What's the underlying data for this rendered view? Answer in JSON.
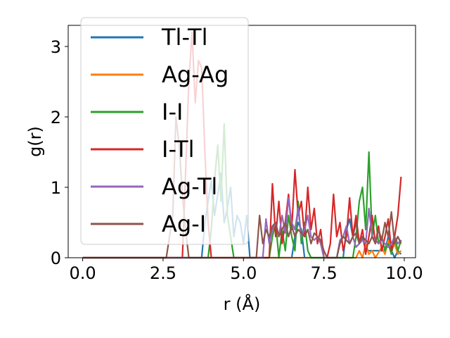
{
  "chart_data": {
    "type": "line",
    "xlabel": "r (Å)",
    "ylabel": "g(r)",
    "xlim": [
      -0.45,
      10.35
    ],
    "ylim": [
      0,
      3.3
    ],
    "xticks": [
      {
        "value": 0,
        "label": "0.0"
      },
      {
        "value": 2.5,
        "label": "2.5"
      },
      {
        "value": 5,
        "label": "5.0"
      },
      {
        "value": 7.5,
        "label": "7.5"
      },
      {
        "value": 10,
        "label": "10.0"
      }
    ],
    "yticks": [
      {
        "value": 0,
        "label": "0"
      },
      {
        "value": 1,
        "label": "1"
      },
      {
        "value": 2,
        "label": "2"
      },
      {
        "value": 3,
        "label": "3"
      }
    ],
    "grid": false,
    "legend_position": "top-left",
    "series": [
      {
        "name": "Tl-Tl",
        "color": "#1f77b4",
        "points": [
          [
            0,
            0
          ],
          [
            3.7,
            0
          ],
          [
            3.8,
            0.5
          ],
          [
            3.9,
            0.8
          ],
          [
            4.0,
            1.1
          ],
          [
            4.1,
            0.6
          ],
          [
            4.2,
            0.9
          ],
          [
            4.3,
            1.2
          ],
          [
            4.4,
            0.5
          ],
          [
            4.5,
            0.7
          ],
          [
            4.6,
            1.0
          ],
          [
            4.7,
            0.3
          ],
          [
            4.8,
            0.6
          ],
          [
            4.9,
            0.5
          ],
          [
            5.0,
            0.2
          ],
          [
            5.1,
            0.6
          ],
          [
            5.2,
            0
          ],
          [
            6.5,
            0
          ],
          [
            6.6,
            0.3
          ],
          [
            6.7,
            0.5
          ],
          [
            6.8,
            0.4
          ],
          [
            6.9,
            0
          ],
          [
            8.1,
            0
          ],
          [
            8.2,
            0.4
          ],
          [
            8.3,
            0.55
          ],
          [
            8.4,
            0.3
          ],
          [
            8.5,
            0.5
          ],
          [
            8.6,
            0.2
          ],
          [
            8.7,
            0.3
          ],
          [
            8.8,
            0.1
          ],
          [
            9.4,
            0.1
          ],
          [
            9.5,
            0.3
          ],
          [
            9.6,
            0.1
          ],
          [
            9.7,
            0
          ],
          [
            9.8,
            0.1
          ],
          [
            9.9,
            0.05
          ]
        ]
      },
      {
        "name": "Ag-Ag",
        "color": "#ff7f0e",
        "points": [
          [
            0,
            0
          ],
          [
            8.5,
            0
          ],
          [
            8.6,
            0.1
          ],
          [
            8.7,
            0
          ],
          [
            8.8,
            0.2
          ],
          [
            8.9,
            0.05
          ],
          [
            9.0,
            0.1
          ],
          [
            9.1,
            0
          ],
          [
            9.3,
            0.15
          ],
          [
            9.4,
            0.05
          ],
          [
            9.5,
            0.25
          ],
          [
            9.6,
            0.1
          ],
          [
            9.7,
            0.2
          ],
          [
            9.8,
            0.05
          ],
          [
            9.9,
            0.1
          ]
        ]
      },
      {
        "name": "I-I",
        "color": "#2ca02c",
        "points": [
          [
            0,
            0
          ],
          [
            3.9,
            0
          ],
          [
            4.0,
            0.4
          ],
          [
            4.1,
            1.1
          ],
          [
            4.2,
            1.6
          ],
          [
            4.3,
            0.8
          ],
          [
            4.4,
            1.9
          ],
          [
            4.5,
            0.6
          ],
          [
            4.6,
            0.3
          ],
          [
            4.7,
            0
          ],
          [
            5.8,
            0
          ],
          [
            5.9,
            0.3
          ],
          [
            6.0,
            0.5
          ],
          [
            6.1,
            0
          ],
          [
            6.2,
            0.4
          ],
          [
            6.3,
            0.1
          ],
          [
            6.4,
            0.6
          ],
          [
            6.5,
            0.3
          ],
          [
            6.6,
            0.1
          ],
          [
            6.7,
            0.8
          ],
          [
            6.8,
            0.2
          ],
          [
            6.9,
            0.5
          ],
          [
            7.0,
            0.1
          ],
          [
            7.1,
            0
          ],
          [
            8.4,
            0
          ],
          [
            8.5,
            0.3
          ],
          [
            8.6,
            0.8
          ],
          [
            8.7,
            1.0
          ],
          [
            8.8,
            0.4
          ],
          [
            8.9,
            1.5
          ],
          [
            9.0,
            0.3
          ],
          [
            9.1,
            0.6
          ],
          [
            9.2,
            0.2
          ],
          [
            9.3,
            0.3
          ],
          [
            9.4,
            0.1
          ],
          [
            9.5,
            0.2
          ],
          [
            9.6,
            0.05
          ],
          [
            9.7,
            0.3
          ],
          [
            9.8,
            0.1
          ],
          [
            9.9,
            0.25
          ]
        ]
      },
      {
        "name": "I-Tl",
        "color": "#d62728",
        "points": [
          [
            0,
            0
          ],
          [
            3.1,
            0
          ],
          [
            3.2,
            1.2
          ],
          [
            3.3,
            2.5
          ],
          [
            3.4,
            3.2
          ],
          [
            3.5,
            2.2
          ],
          [
            3.6,
            2.8
          ],
          [
            3.7,
            2.7
          ],
          [
            3.8,
            1.5
          ],
          [
            3.9,
            0.5
          ],
          [
            4.0,
            0
          ],
          [
            5.8,
            0
          ],
          [
            5.9,
            1.05
          ],
          [
            6.0,
            0.3
          ],
          [
            6.1,
            0.8
          ],
          [
            6.2,
            0.2
          ],
          [
            6.3,
            0.5
          ],
          [
            6.4,
            0.9
          ],
          [
            6.5,
            0.4
          ],
          [
            6.6,
            1.25
          ],
          [
            6.7,
            0.6
          ],
          [
            6.8,
            0.8
          ],
          [
            6.9,
            0.3
          ],
          [
            7.0,
            1.0
          ],
          [
            7.1,
            0.4
          ],
          [
            7.2,
            0.7
          ],
          [
            7.3,
            0.2
          ],
          [
            7.4,
            0.4
          ],
          [
            7.5,
            0
          ],
          [
            7.6,
            0
          ],
          [
            7.7,
            0.2
          ],
          [
            7.8,
            0.9
          ],
          [
            7.9,
            0.3
          ],
          [
            8.0,
            0.5
          ],
          [
            8.1,
            0.1
          ],
          [
            8.2,
            0.3
          ],
          [
            8.3,
            0.85
          ],
          [
            8.4,
            0.3
          ],
          [
            8.5,
            0.6
          ],
          [
            8.6,
            0.2
          ],
          [
            8.7,
            0.4
          ],
          [
            8.8,
            0.05
          ],
          [
            8.9,
            0.3
          ],
          [
            9.0,
            0.6
          ],
          [
            9.1,
            0.2
          ],
          [
            9.2,
            0.45
          ],
          [
            9.3,
            0.1
          ],
          [
            9.4,
            0.3
          ],
          [
            9.5,
            0.55
          ],
          [
            9.6,
            0.1
          ],
          [
            9.7,
            0.3
          ],
          [
            9.8,
            0.6
          ],
          [
            9.9,
            1.15
          ]
        ]
      },
      {
        "name": "Ag-Tl",
        "color": "#9467bd",
        "points": [
          [
            0,
            0
          ],
          [
            5.6,
            0
          ],
          [
            5.7,
            0.55
          ],
          [
            5.8,
            0.2
          ],
          [
            5.9,
            0.4
          ],
          [
            6.0,
            0.5
          ],
          [
            6.1,
            0.3
          ],
          [
            6.2,
            0.6
          ],
          [
            6.3,
            0.35
          ],
          [
            6.4,
            0.85
          ],
          [
            6.5,
            0.5
          ],
          [
            6.6,
            0.4
          ],
          [
            6.7,
            0.7
          ],
          [
            6.8,
            0.3
          ],
          [
            6.9,
            0.4
          ],
          [
            7.0,
            0.6
          ],
          [
            7.1,
            0.3
          ],
          [
            7.2,
            0.25
          ],
          [
            7.3,
            0.3
          ],
          [
            7.4,
            0.2
          ],
          [
            7.5,
            0
          ],
          [
            7.9,
            0
          ],
          [
            8.0,
            0.25
          ],
          [
            8.1,
            0.3
          ],
          [
            8.2,
            0.45
          ],
          [
            8.3,
            0.2
          ],
          [
            8.4,
            0.3
          ],
          [
            8.5,
            0.15
          ],
          [
            8.6,
            0.2
          ],
          [
            8.7,
            0.25
          ],
          [
            8.8,
            0.2
          ],
          [
            8.9,
            0.7
          ],
          [
            9.0,
            0.3
          ],
          [
            9.1,
            0.25
          ],
          [
            9.2,
            0.2
          ],
          [
            9.3,
            0.25
          ],
          [
            9.4,
            0.2
          ],
          [
            9.5,
            0.15
          ],
          [
            9.6,
            0.2
          ],
          [
            9.7,
            0.3
          ],
          [
            9.8,
            0.2
          ],
          [
            9.9,
            0.25
          ]
        ]
      },
      {
        "name": "Ag-I",
        "color": "#8c564b",
        "points": [
          [
            0,
            0
          ],
          [
            2.6,
            0
          ],
          [
            2.7,
            0.3
          ],
          [
            2.8,
            0.6
          ],
          [
            2.9,
            2.0
          ],
          [
            3.0,
            1.6
          ],
          [
            3.1,
            0.9
          ],
          [
            3.2,
            0.4
          ],
          [
            3.3,
            0
          ],
          [
            5.4,
            0
          ],
          [
            5.5,
            0.6
          ],
          [
            5.6,
            0.2
          ],
          [
            5.7,
            0.4
          ],
          [
            5.8,
            0.3
          ],
          [
            5.9,
            0.45
          ],
          [
            6.0,
            0.5
          ],
          [
            6.1,
            0.3
          ],
          [
            6.2,
            0.4
          ],
          [
            6.3,
            0.5
          ],
          [
            6.4,
            0.3
          ],
          [
            6.5,
            0.45
          ],
          [
            6.6,
            0.3
          ],
          [
            6.7,
            0.4
          ],
          [
            6.8,
            0.35
          ],
          [
            6.9,
            0.3
          ],
          [
            7.0,
            0.4
          ],
          [
            7.1,
            0.2
          ],
          [
            7.2,
            0.35
          ],
          [
            7.3,
            0.3
          ],
          [
            7.4,
            0.25
          ],
          [
            7.5,
            0.1
          ],
          [
            7.6,
            0
          ],
          [
            7.9,
            0
          ],
          [
            8.0,
            0.2
          ],
          [
            8.1,
            0.3
          ],
          [
            8.2,
            0.25
          ],
          [
            8.3,
            0.2
          ],
          [
            8.4,
            0.3
          ],
          [
            8.5,
            0.35
          ],
          [
            8.6,
            0.2
          ],
          [
            8.7,
            0.3
          ],
          [
            8.8,
            0.25
          ],
          [
            8.9,
            0.2
          ],
          [
            9.0,
            0.3
          ],
          [
            9.1,
            0.2
          ],
          [
            9.2,
            0.4
          ],
          [
            9.3,
            0.25
          ],
          [
            9.4,
            0.5
          ],
          [
            9.5,
            0.3
          ],
          [
            9.6,
            0.65
          ],
          [
            9.7,
            0.2
          ],
          [
            9.8,
            0.3
          ],
          [
            9.9,
            0.2
          ]
        ]
      }
    ]
  }
}
